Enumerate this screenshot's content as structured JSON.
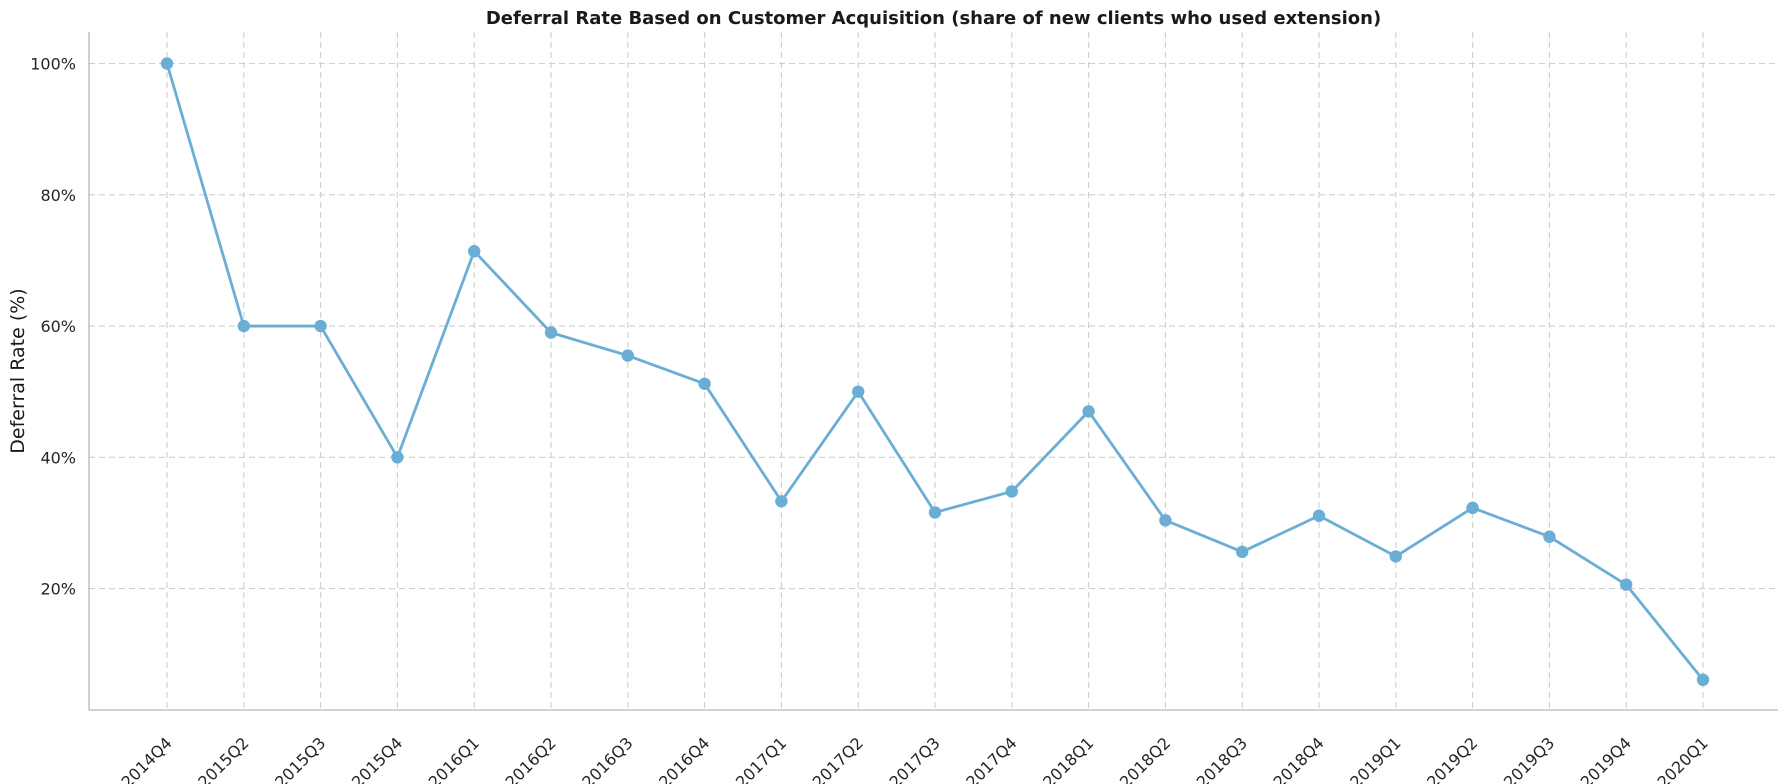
{
  "chart_data": {
    "type": "line",
    "title": "Deferral Rate Based on Customer Acquisition (share of new clients who used extension)",
    "xlabel": "",
    "ylabel": "Deferral Rate (%)",
    "categories": [
      "2014Q4",
      "2015Q2",
      "2015Q3",
      "2015Q4",
      "2016Q1",
      "2016Q2",
      "2016Q3",
      "2016Q4",
      "2017Q1",
      "2017Q2",
      "2017Q3",
      "2017Q4",
      "2018Q1",
      "2018Q2",
      "2018Q3",
      "2018Q4",
      "2019Q1",
      "2019Q2",
      "2019Q3",
      "2019Q4",
      "2020Q1"
    ],
    "series": [
      {
        "values": [
          100,
          60,
          60,
          40,
          71.4,
          59,
          55.5,
          51.2,
          33.3,
          50,
          31.6,
          34.8,
          47,
          30.4,
          25.6,
          31.1,
          24.9,
          32.3,
          27.9,
          20.6,
          6.1
        ],
        "color": "#6aaed6"
      }
    ],
    "yticks": [
      20,
      40,
      60,
      80,
      100
    ],
    "ytick_labels": [
      "20%",
      "40%",
      "60%",
      "80%",
      "100%"
    ],
    "ylim": [
      1.5,
      104.8
    ],
    "grid": true,
    "legend": "none"
  }
}
